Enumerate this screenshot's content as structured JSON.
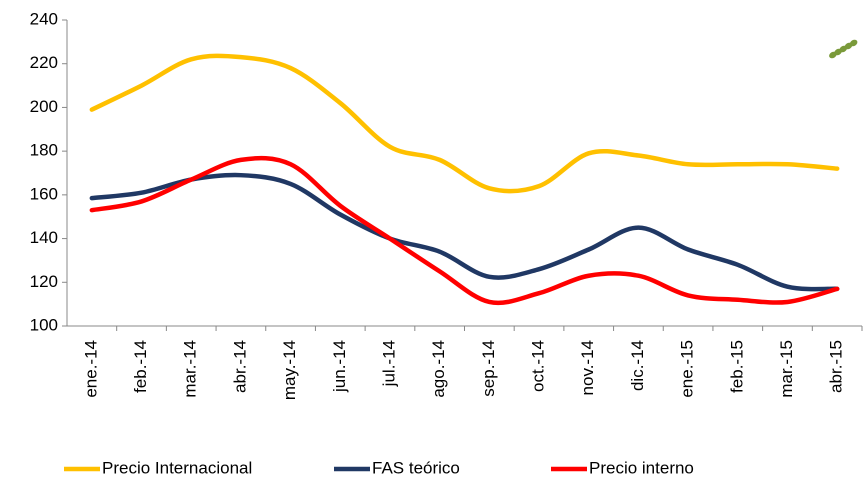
{
  "chart_data": {
    "type": "line",
    "categories": [
      "ene.-14",
      "feb.-14",
      "mar.-14",
      "abr.-14",
      "may.-14",
      "jun.-14",
      "jul.-14",
      "ago.-14",
      "sep.-14",
      "oct.-14",
      "nov.-14",
      "dic.-14",
      "ene.-15",
      "feb.-15",
      "mar.-15",
      "abr.-15"
    ],
    "series": [
      {
        "name": "Precio Internacional",
        "color": "#ffc000",
        "values": [
          199,
          210,
          222,
          223,
          218,
          202,
          182,
          176,
          163,
          164,
          179,
          178,
          174,
          174,
          174,
          172
        ]
      },
      {
        "name": "FAS teórico",
        "color": "#203864",
        "values": [
          158.5,
          161,
          167,
          169,
          165,
          151,
          140,
          134,
          122.5,
          126,
          135,
          145,
          135,
          128,
          118,
          117
        ]
      },
      {
        "name": "Precio interno",
        "color": "#ff0000",
        "values": [
          153,
          157,
          167,
          176,
          174,
          155,
          140,
          125,
          111,
          115,
          123,
          123,
          114,
          112,
          111,
          117
        ]
      }
    ],
    "ylim": [
      100,
      240
    ],
    "yticks": [
      100,
      120,
      140,
      160,
      180,
      200,
      220,
      240
    ],
    "smooth": true
  }
}
